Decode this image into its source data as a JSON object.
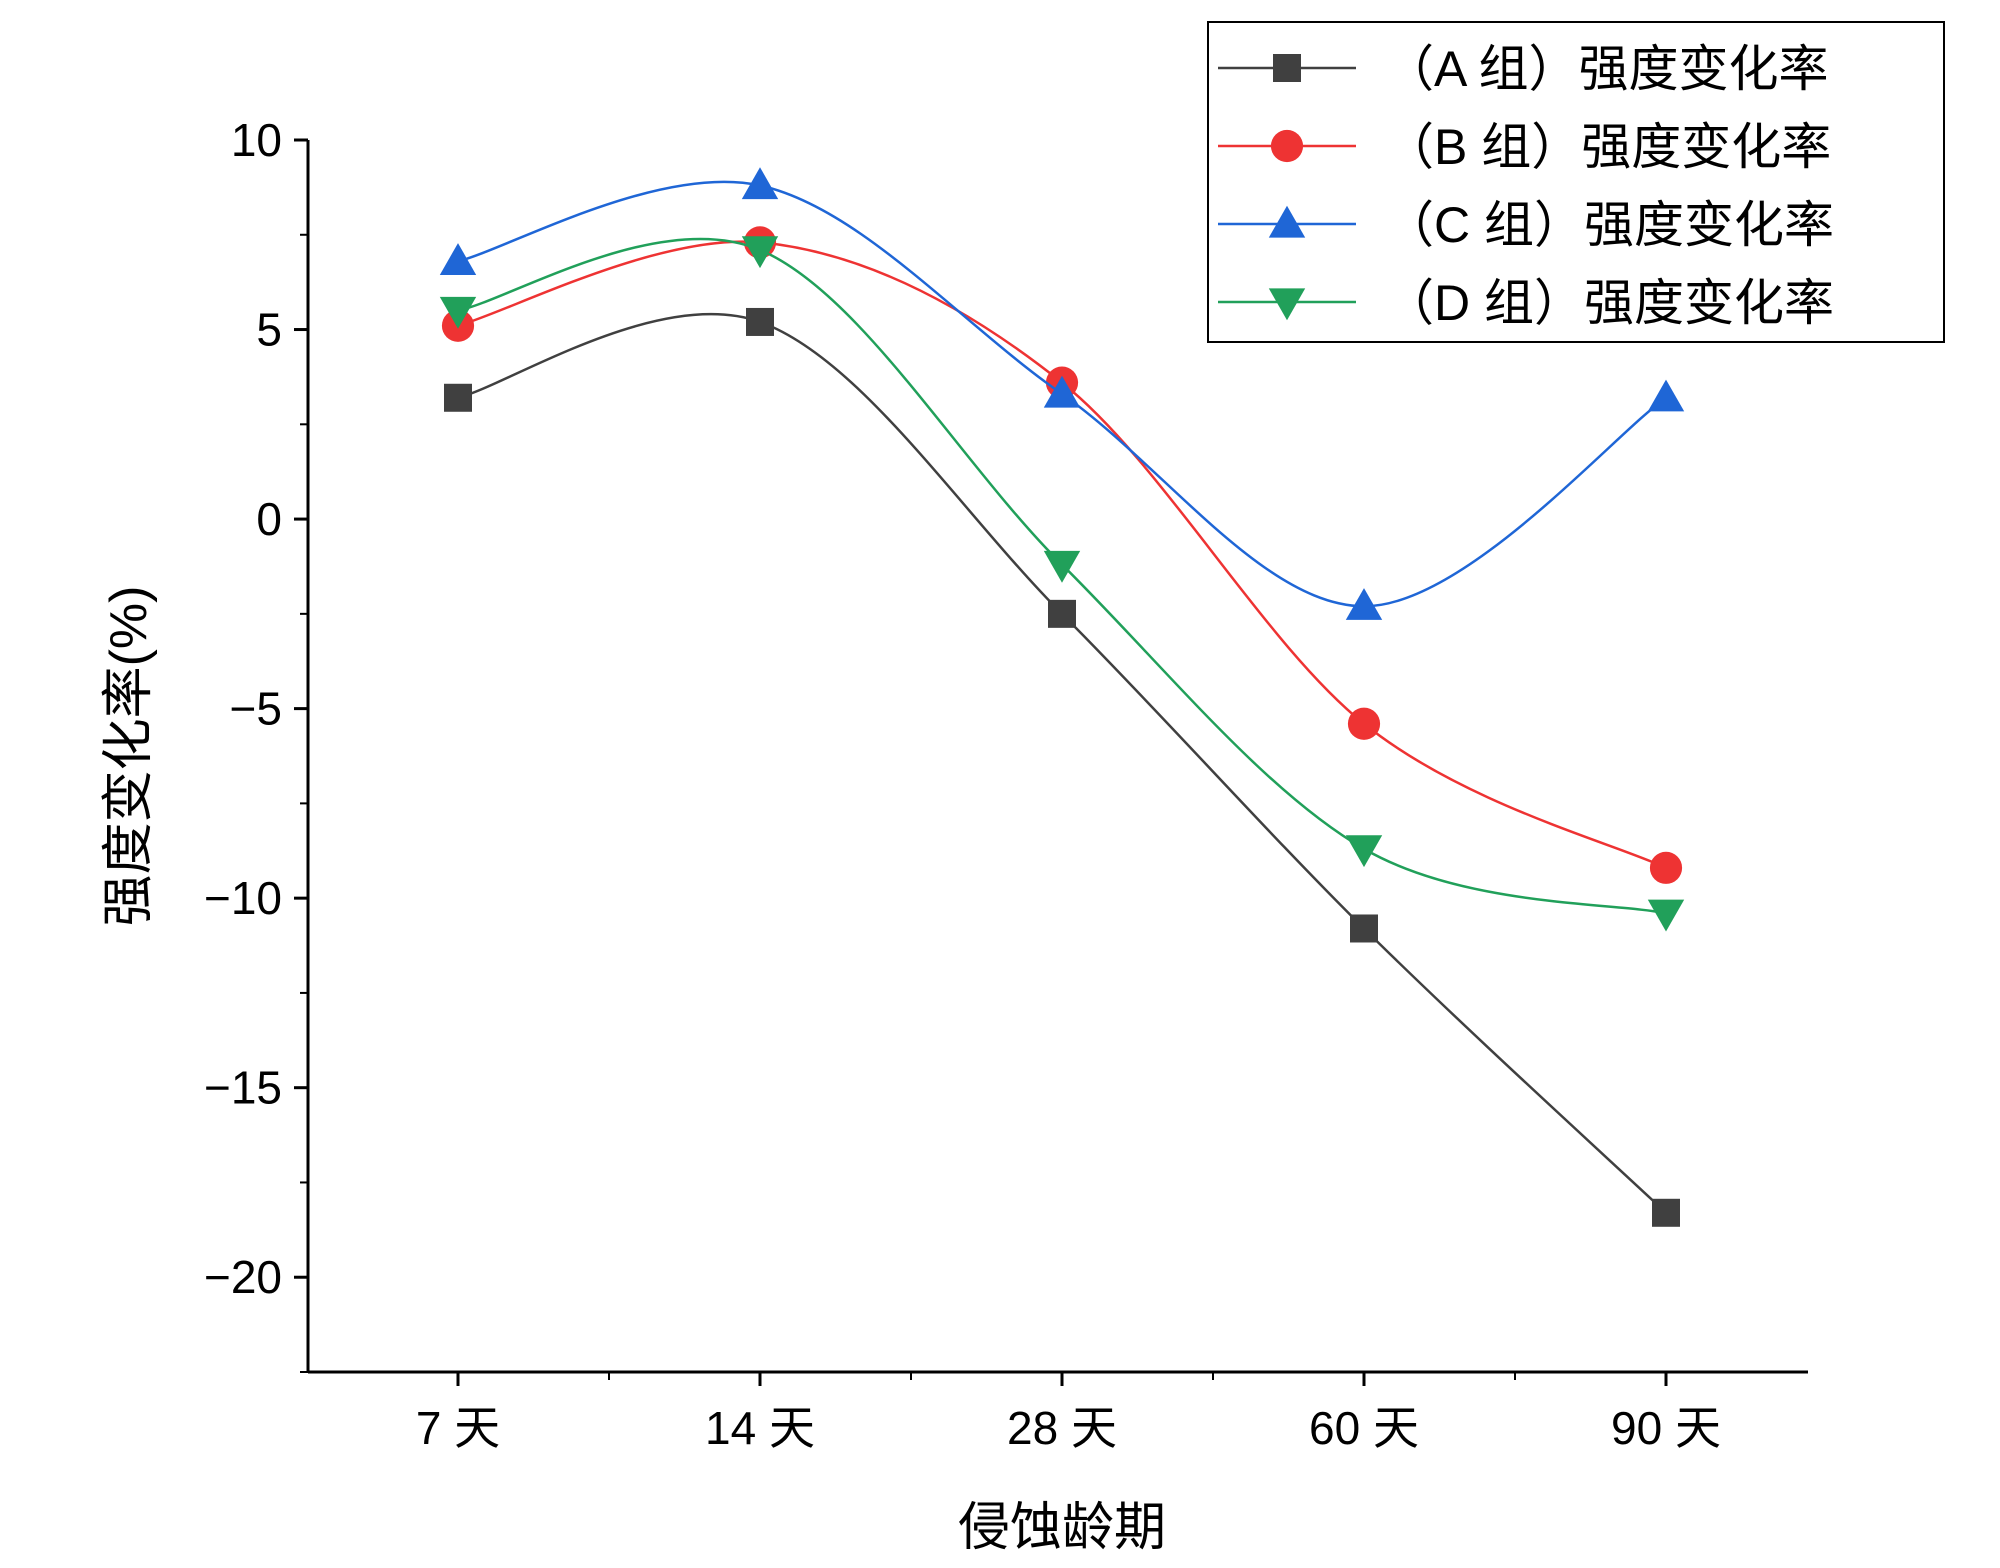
{
  "chart_data": {
    "type": "line",
    "smoothed": true,
    "title": "",
    "xlabel": "侵蚀龄期",
    "ylabel": "强度变化率(%)",
    "categories": [
      "7 天",
      "14 天",
      "28 天",
      "60 天",
      "90 天"
    ],
    "ylim": [
      -22.5,
      10
    ],
    "yticks": [
      10,
      5,
      0,
      -5,
      -10,
      -15,
      -20
    ],
    "ytick_labels": [
      "10",
      "5",
      "0",
      "−5",
      "−10",
      "−15",
      "−20"
    ],
    "legend_position": "top-right",
    "series": [
      {
        "name": "（A 组）强度变化率",
        "color": "#404040",
        "marker": "square",
        "values": [
          3.2,
          5.2,
          -2.5,
          -10.8,
          -18.3
        ]
      },
      {
        "name": "（B 组）强度变化率",
        "color": "#ee3333",
        "marker": "circle",
        "values": [
          5.1,
          7.3,
          3.6,
          -5.4,
          -9.2
        ]
      },
      {
        "name": "（C 组）强度变化率",
        "color": "#1f66d6",
        "marker": "triangle-up",
        "values": [
          6.8,
          8.8,
          3.3,
          -2.3,
          3.2
        ]
      },
      {
        "name": "（D 组）强度变化率",
        "color": "#21a05a",
        "marker": "triangle-down",
        "values": [
          5.5,
          7.1,
          -1.2,
          -8.7,
          -10.4
        ]
      }
    ]
  }
}
